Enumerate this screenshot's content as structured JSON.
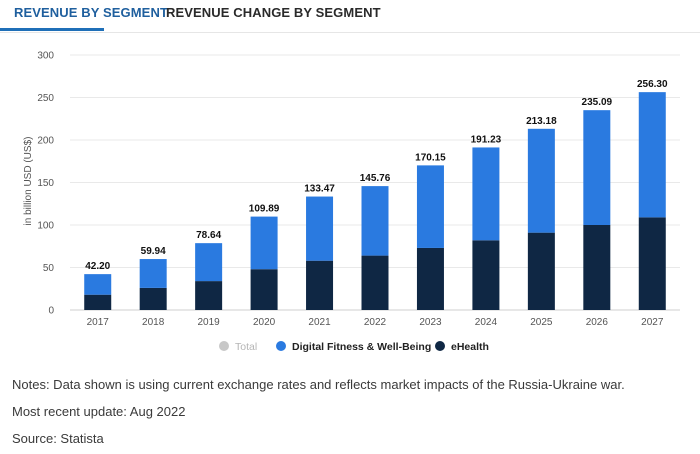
{
  "tabs": [
    {
      "label": "REVENUE BY SEGMENT",
      "active": true
    },
    {
      "label": "REVENUE CHANGE BY SEGMENT",
      "active": false
    }
  ],
  "chart_data": {
    "type": "bar",
    "stacked": true,
    "ylabel": "in billion USD (US$)",
    "ylim": [
      0,
      300
    ],
    "yticks": [
      0,
      50,
      100,
      150,
      200,
      250,
      300
    ],
    "categories": [
      "2017",
      "2018",
      "2019",
      "2020",
      "2021",
      "2022",
      "2023",
      "2024",
      "2025",
      "2026",
      "2027"
    ],
    "totals": [
      42.2,
      59.94,
      78.64,
      109.89,
      133.47,
      145.76,
      170.15,
      191.23,
      213.18,
      235.09,
      256.3
    ],
    "total_labels": [
      "42.20",
      "59.94",
      "78.64",
      "109.89",
      "133.47",
      "145.76",
      "170.15",
      "191.23",
      "213.18",
      "235.09",
      "256.30"
    ],
    "series": [
      {
        "name": "eHealth",
        "color": "#0f2744",
        "values": [
          18,
          26,
          34,
          48,
          58,
          64,
          73,
          82,
          91,
          100,
          109
        ]
      },
      {
        "name": "Digital Fitness & Well-Being",
        "color": "#2a7ae0",
        "values": [
          24.2,
          33.94,
          44.64,
          61.89,
          75.47,
          81.76,
          97.15,
          109.23,
          122.18,
          135.09,
          147.3
        ]
      }
    ],
    "legend": [
      {
        "name": "Total",
        "color": "#c8c8c8",
        "muted": true
      },
      {
        "name": "Digital Fitness & Well-Being",
        "color": "#2a7ae0",
        "muted": false
      },
      {
        "name": "eHealth",
        "color": "#0f2744",
        "muted": false
      }
    ],
    "grid": true,
    "legend_position": "bottom"
  },
  "notes": {
    "line1": "Notes: Data shown is using current exchange rates and reflects market impacts of the Russia-Ukraine war.",
    "line2": "Most recent update: Aug 2022",
    "line3": "Source: Statista"
  }
}
